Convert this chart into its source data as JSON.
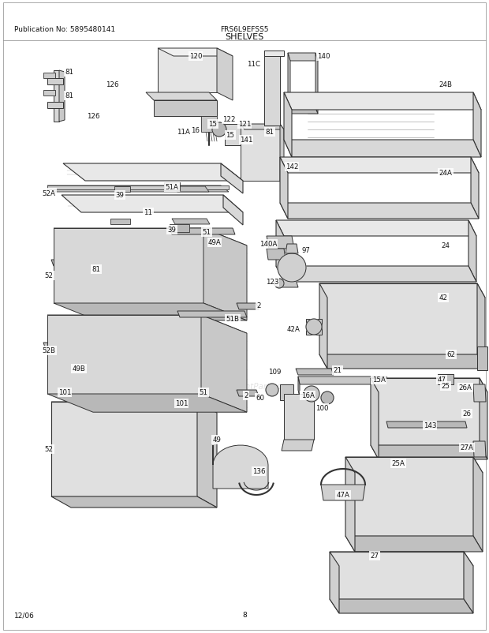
{
  "title": "SHELVES",
  "pub_no": "Publication No: 5895480141",
  "model": "FRS6L9EFSS5",
  "date": "12/06",
  "page": "8",
  "diagram_id": "N58SLDJEE1",
  "bg_color": "#ffffff",
  "border_color": "#000000",
  "line_color": "#333333",
  "text_color": "#111111",
  "fig_width": 6.2,
  "fig_height": 8.03,
  "dpi": 100
}
